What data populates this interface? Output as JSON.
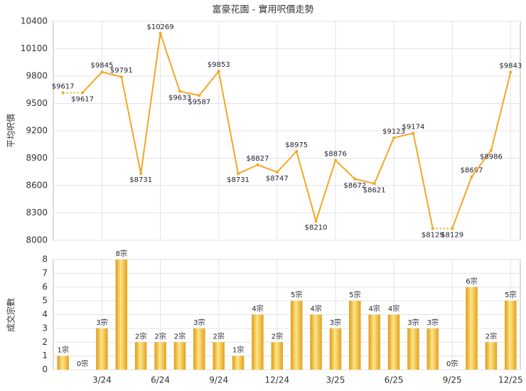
{
  "chart_data": [
    {
      "type": "line",
      "title": "富豪花園 - 實用呎價走勢",
      "y_label": "平均呎價",
      "color": "#f5a623",
      "values": [
        9617,
        9617,
        9845,
        9791,
        8731,
        10269,
        9633,
        9587,
        9853,
        8731,
        8827,
        8747,
        8975,
        8210,
        8876,
        8672,
        8621,
        9123,
        9174,
        8129,
        8129,
        8697,
        8986,
        9843
      ],
      "value_labels": [
        "$9617",
        "$9617",
        "$9845",
        "$9791",
        "$8731",
        "$10269",
        "$9633",
        "$9587",
        "$9853",
        "$8731",
        "$8827",
        "$8747",
        "$8975",
        "$8210",
        "$8876",
        "$8672",
        "$8621",
        "$9123",
        "$9174",
        "$8129",
        "$8129",
        "$8697",
        "$8986",
        "$9843"
      ],
      "ylim": [
        8000,
        10400
      ],
      "yticks": [
        8000,
        8300,
        8600,
        8900,
        9200,
        9500,
        9800,
        10100,
        10400
      ],
      "grid": true
    },
    {
      "type": "bar",
      "y_label": "成交宗數",
      "color": "#f0b020",
      "categories": [
        null,
        null,
        "3/24",
        null,
        null,
        "6/24",
        null,
        null,
        "9/24",
        null,
        null,
        "12/24",
        null,
        null,
        "3/25",
        null,
        null,
        "6/25",
        null,
        null,
        "9/25",
        null,
        null,
        "12/25"
      ],
      "values": [
        1,
        0,
        3,
        8,
        2,
        2,
        2,
        3,
        2,
        1,
        4,
        2,
        5,
        4,
        3,
        5,
        4,
        4,
        3,
        3,
        0,
        6,
        2,
        5
      ],
      "value_labels": [
        "1宗",
        "0宗",
        "3宗",
        "8宗",
        "2宗",
        "2宗",
        "2宗",
        "3宗",
        "2宗",
        "1宗",
        "4宗",
        "2宗",
        "5宗",
        "4宗",
        "3宗",
        "5宗",
        "4宗",
        "4宗",
        "3宗",
        "3宗",
        "0宗",
        "6宗",
        "2宗",
        "5宗"
      ],
      "ylim": [
        0,
        8
      ],
      "yticks": [
        0,
        1,
        2,
        3,
        4,
        5,
        6,
        7,
        8
      ],
      "grid": true
    }
  ]
}
